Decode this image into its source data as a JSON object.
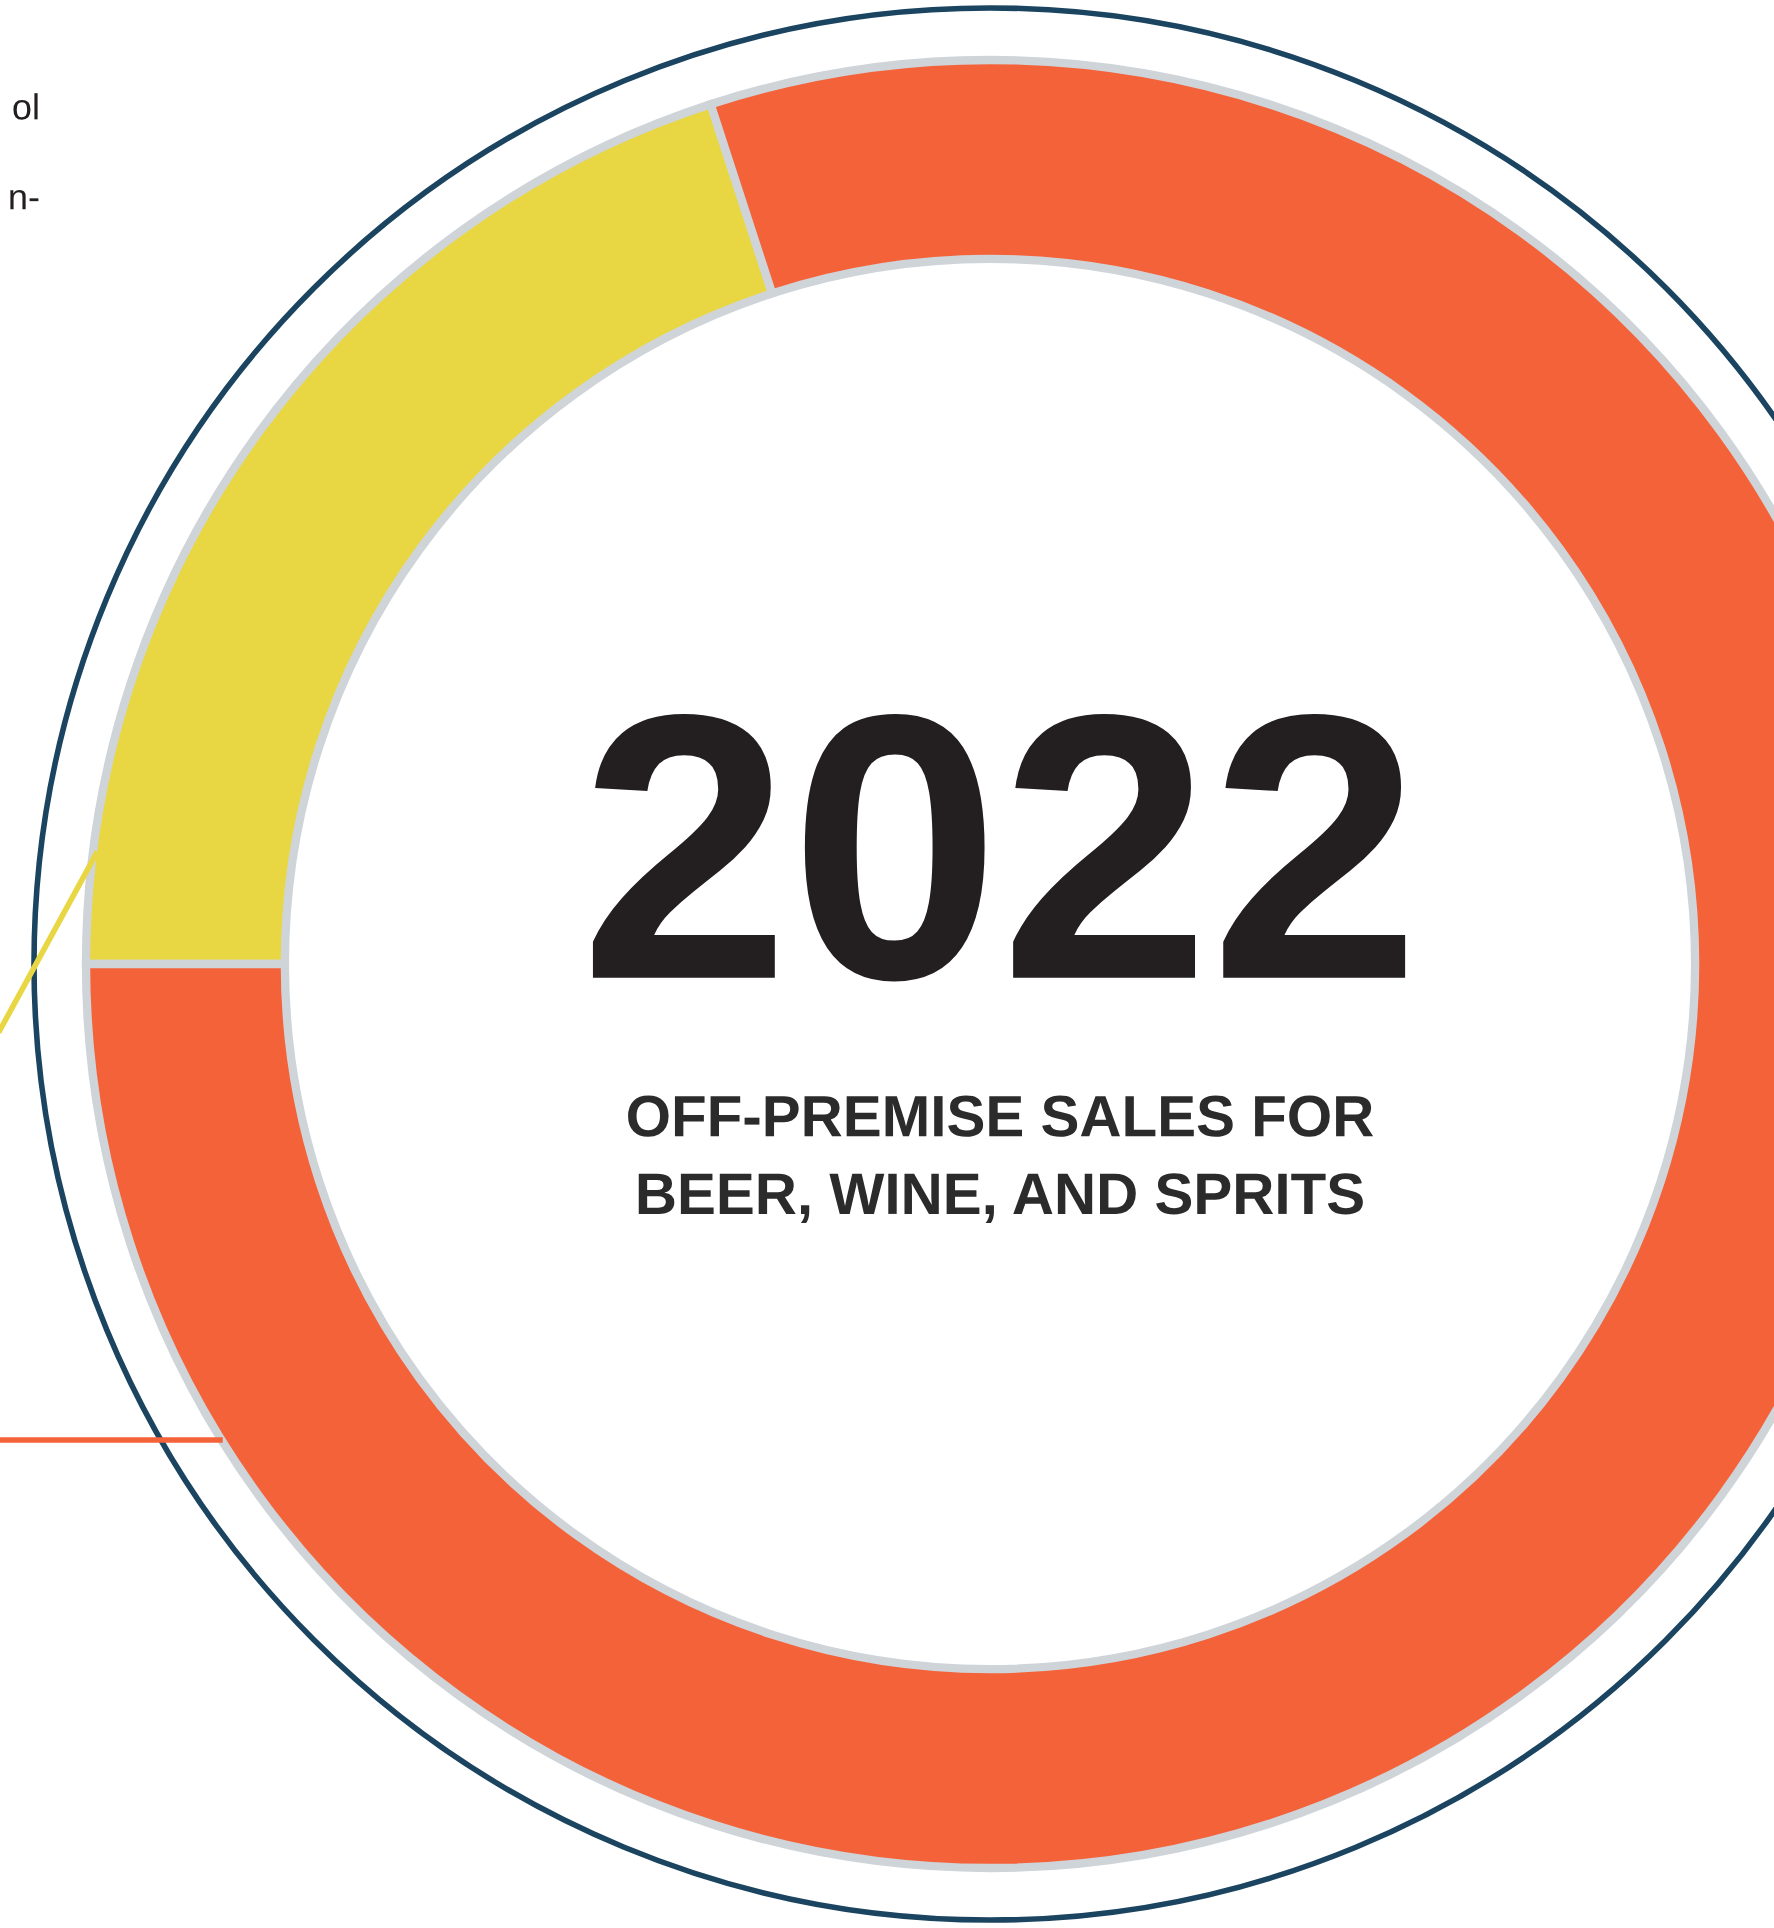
{
  "chart_data": {
    "type": "donut",
    "title": "2022",
    "subtitle": "OFF-PREMISE SALES FOR\nBEER, WINE, AND SPRITS",
    "categories": [
      null,
      null
    ],
    "values": [
      20,
      80
    ],
    "colors": [
      "#e8d742",
      "#f4623a"
    ],
    "annotations": [
      "ol",
      "n-"
    ]
  }
}
